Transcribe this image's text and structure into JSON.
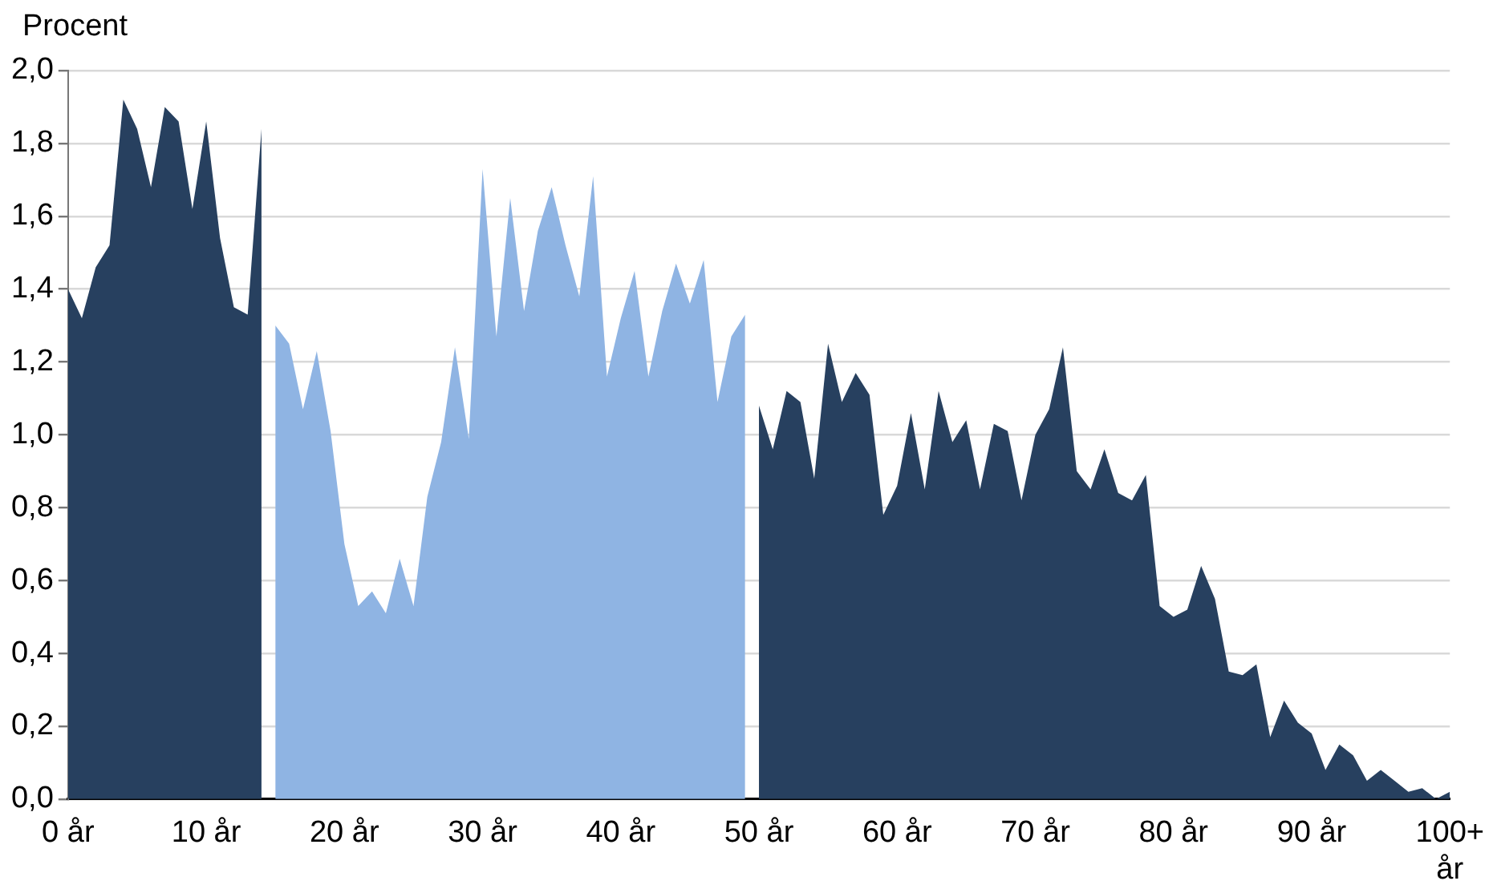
{
  "chart_data": {
    "type": "area",
    "ylabel": "Procent",
    "xlim": [
      0,
      100
    ],
    "ylim": [
      0,
      2
    ],
    "xticks": [
      {
        "value": 0,
        "label": "0 år"
      },
      {
        "value": 10,
        "label": "10 år"
      },
      {
        "value": 20,
        "label": "20 år"
      },
      {
        "value": 30,
        "label": "30 år"
      },
      {
        "value": 40,
        "label": "40 år"
      },
      {
        "value": 50,
        "label": "50 år"
      },
      {
        "value": 60,
        "label": "60 år"
      },
      {
        "value": 70,
        "label": "70 år"
      },
      {
        "value": 80,
        "label": "80 år"
      },
      {
        "value": 90,
        "label": "90 år"
      },
      {
        "value": 100,
        "label": "100+ år"
      }
    ],
    "yticks": [
      {
        "value": 0,
        "label": "0,0"
      },
      {
        "value": 0.2,
        "label": "0,2"
      },
      {
        "value": 0.4,
        "label": "0,4"
      },
      {
        "value": 0.6,
        "label": "0,6"
      },
      {
        "value": 0.8,
        "label": "0,8"
      },
      {
        "value": 1,
        "label": "1,0"
      },
      {
        "value": 1.2,
        "label": "1,2"
      },
      {
        "value": 1.4,
        "label": "1,4"
      },
      {
        "value": 1.6,
        "label": "1,6"
      },
      {
        "value": 1.8,
        "label": "1,8"
      },
      {
        "value": 2,
        "label": "2,0"
      }
    ],
    "grid": "y",
    "legend": false,
    "series": [
      {
        "color": "#27405f",
        "x": [
          0,
          1,
          2,
          3,
          4,
          5,
          6,
          7,
          8,
          9,
          10,
          11,
          12,
          13,
          14
        ],
        "values": [
          1.4,
          1.32,
          1.46,
          1.52,
          1.92,
          1.84,
          1.68,
          1.9,
          1.86,
          1.62,
          1.86,
          1.54,
          1.35,
          1.33,
          1.84
        ]
      },
      {
        "color": "#8fb4e3",
        "x": [
          15,
          16,
          17,
          18,
          19,
          20,
          21,
          22,
          23,
          24,
          25,
          26,
          27,
          28,
          29,
          30,
          31,
          32,
          33,
          34,
          35,
          36,
          37,
          38,
          39,
          40,
          41,
          42,
          43,
          44,
          45,
          46,
          47,
          48,
          49
        ],
        "values": [
          1.3,
          1.25,
          1.07,
          1.23,
          1.01,
          0.7,
          0.53,
          0.57,
          0.51,
          0.66,
          0.53,
          0.83,
          0.98,
          1.24,
          0.99,
          1.73,
          1.27,
          1.65,
          1.34,
          1.56,
          1.68,
          1.52,
          1.38,
          1.71,
          1.16,
          1.32,
          1.45,
          1.16,
          1.34,
          1.47,
          1.36,
          1.48,
          1.09,
          1.27,
          1.33
        ]
      },
      {
        "color": "#27405f",
        "x": [
          50,
          51,
          52,
          53,
          54,
          55,
          56,
          57,
          58,
          59,
          60,
          61,
          62,
          63,
          64,
          65,
          66,
          67,
          68,
          69,
          70,
          71,
          72,
          73,
          74,
          75,
          76,
          77,
          78,
          79,
          80,
          81,
          82,
          83,
          84,
          85,
          86,
          87,
          88,
          89,
          90,
          91,
          92,
          93,
          94,
          95,
          96,
          97,
          98,
          99,
          100
        ],
        "values": [
          1.08,
          0.96,
          1.12,
          1.09,
          0.88,
          1.25,
          1.09,
          1.17,
          1.11,
          0.78,
          0.86,
          1.06,
          0.85,
          1.12,
          0.98,
          1.04,
          0.85,
          1.03,
          1.01,
          0.82,
          1.0,
          1.07,
          1.24,
          0.9,
          0.85,
          0.96,
          0.84,
          0.82,
          0.89,
          0.53,
          0.5,
          0.52,
          0.64,
          0.55,
          0.35,
          0.34,
          0.37,
          0.17,
          0.27,
          0.21,
          0.18,
          0.08,
          0.15,
          0.12,
          0.05,
          0.08,
          0.05,
          0.02,
          0.03,
          0.0,
          0.02
        ]
      }
    ]
  }
}
